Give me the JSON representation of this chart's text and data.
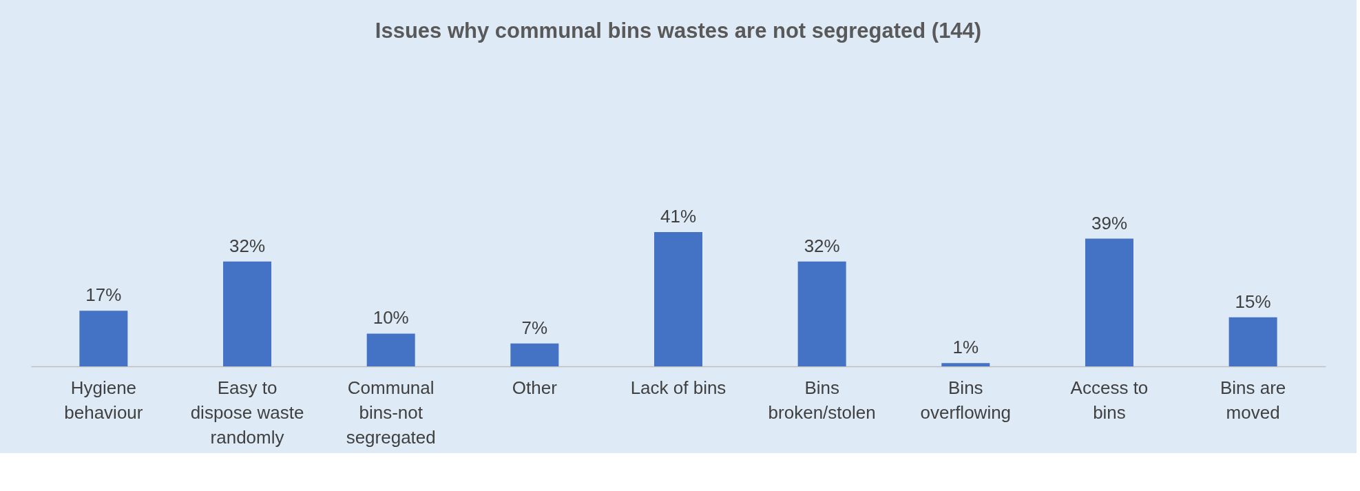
{
  "chart_data": {
    "type": "bar",
    "title": "Issues why communal bins wastes are not segregated (144)",
    "categories": [
      "Hygiene behaviour",
      "Easy to dispose waste randomly",
      "Communal bins-not segregated",
      "Other",
      "Lack of bins",
      "Bins broken/stolen",
      "Bins overflowing",
      "Access to bins",
      "Bins are moved"
    ],
    "values": [
      17,
      32,
      10,
      7,
      41,
      32,
      1,
      39,
      15
    ],
    "value_labels": [
      "17%",
      "32%",
      "10%",
      "7%",
      "41%",
      "32%",
      "1%",
      "39%",
      "15%"
    ],
    "color": "#4472c4",
    "grid": false,
    "tick_labels": "x"
  }
}
